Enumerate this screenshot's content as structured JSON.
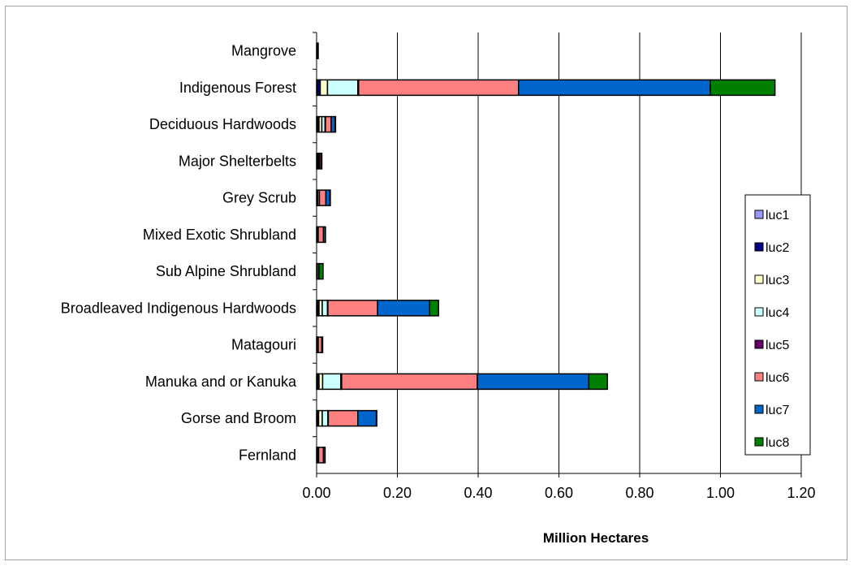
{
  "chart_data": {
    "type": "bar",
    "orientation": "horizontal",
    "stacked": true,
    "title": "",
    "xlabel": "Million Hectares",
    "ylabel": "",
    "xlim": [
      0,
      1.2
    ],
    "xticks": [
      "0.00",
      "0.20",
      "0.40",
      "0.60",
      "0.80",
      "1.00",
      "1.20"
    ],
    "grid": "vertical",
    "legend_position": "right",
    "categories": [
      "Mangrove",
      "Indigenous Forest",
      "Deciduous Hardwoods",
      "Major Shelterbelts",
      "Grey Scrub",
      "Mixed Exotic Shrubland",
      "Sub Alpine Shrubland",
      "Broadleaved Indigenous Hardwoods",
      "Matagouri",
      "Manuka and or Kanuka",
      "Gorse and Broom",
      "Fernland"
    ],
    "series": [
      {
        "name": "luc1",
        "color": "#9999ff",
        "values": [
          0.0,
          0.001,
          0.001,
          0.0,
          0.0,
          0.0,
          0.0,
          0.001,
          0.0,
          0.001,
          0.001,
          0.0
        ]
      },
      {
        "name": "luc2",
        "color": "#000080",
        "values": [
          0.003,
          0.008,
          0.005,
          0.002,
          0.001,
          0.001,
          0.0,
          0.005,
          0.001,
          0.005,
          0.004,
          0.001
        ]
      },
      {
        "name": "luc3",
        "color": "#ffffcc",
        "values": [
          0.001,
          0.018,
          0.007,
          0.003,
          0.002,
          0.001,
          0.0,
          0.008,
          0.001,
          0.009,
          0.009,
          0.001
        ]
      },
      {
        "name": "luc4",
        "color": "#ccffff",
        "values": [
          0.0,
          0.075,
          0.008,
          0.003,
          0.004,
          0.002,
          0.0,
          0.013,
          0.002,
          0.045,
          0.014,
          0.003
        ]
      },
      {
        "name": "luc5",
        "color": "#660066",
        "values": [
          0.0,
          0.002,
          0.001,
          0.0,
          0.0,
          0.0,
          0.0,
          0.001,
          0.0,
          0.002,
          0.001,
          0.0
        ]
      },
      {
        "name": "luc6",
        "color": "#ff8080",
        "values": [
          0.0,
          0.396,
          0.014,
          0.004,
          0.016,
          0.013,
          0.001,
          0.123,
          0.009,
          0.336,
          0.073,
          0.012
        ]
      },
      {
        "name": "luc7",
        "color": "#0066cc",
        "values": [
          0.0,
          0.475,
          0.01,
          0.001,
          0.01,
          0.005,
          0.005,
          0.129,
          0.002,
          0.276,
          0.046,
          0.004
        ]
      },
      {
        "name": "luc8",
        "color": "#008000",
        "values": [
          0.0,
          0.16,
          0.001,
          0.0,
          0.001,
          0.0,
          0.01,
          0.022,
          0.0,
          0.046,
          0.001,
          0.0
        ]
      }
    ]
  }
}
